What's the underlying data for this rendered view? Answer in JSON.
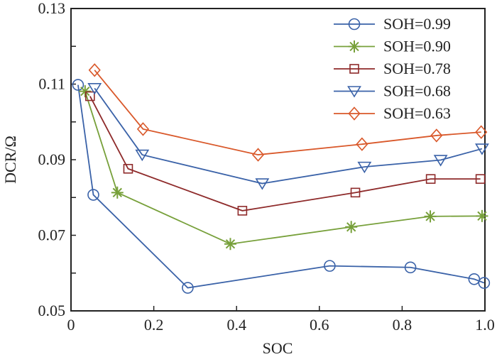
{
  "chart_data": {
    "type": "line",
    "title": "",
    "xlabel": "SOC",
    "ylabel": "DCR/Ω",
    "xlim": [
      0,
      1.0
    ],
    "ylim": [
      0.05,
      0.13
    ],
    "xticks": [
      "0",
      "0.2",
      "0.4",
      "0.6",
      "0.8",
      "1.0"
    ],
    "yticks": [
      "0.05",
      "0.07",
      "0.09",
      "0.11",
      "0.13"
    ],
    "grid": false,
    "legend_position": "top-right",
    "series": [
      {
        "name": "SOH=0.99",
        "color": "#3a62a8",
        "marker": "circle",
        "x": [
          0.017,
          0.054,
          0.282,
          0.625,
          0.82,
          0.974,
          0.998
        ],
        "y": [
          0.1098,
          0.0807,
          0.0561,
          0.0619,
          0.0615,
          0.0584,
          0.0574
        ]
      },
      {
        "name": "SOH=0.90",
        "color": "#77a03a",
        "marker": "star",
        "x": [
          0.034,
          0.112,
          0.385,
          0.677,
          0.868,
          0.993
        ],
        "y": [
          0.1081,
          0.0813,
          0.0677,
          0.0722,
          0.075,
          0.0751
        ]
      },
      {
        "name": "SOH=0.78",
        "color": "#8e2a2a",
        "marker": "square",
        "x": [
          0.046,
          0.138,
          0.414,
          0.687,
          0.869,
          0.989
        ],
        "y": [
          0.1068,
          0.0876,
          0.0765,
          0.0813,
          0.0849,
          0.0849
        ]
      },
      {
        "name": "SOH=0.68",
        "color": "#3a62a8",
        "marker": "triangle-down",
        "x": [
          0.057,
          0.172,
          0.462,
          0.709,
          0.893,
          0.993
        ],
        "y": [
          0.1089,
          0.0913,
          0.0837,
          0.0881,
          0.0899,
          0.0929
        ]
      },
      {
        "name": "SOH=0.63",
        "color": "#d9582a",
        "marker": "diamond",
        "x": [
          0.057,
          0.174,
          0.452,
          0.703,
          0.883,
          0.991
        ],
        "y": [
          0.1137,
          0.0981,
          0.0913,
          0.0941,
          0.0964,
          0.0973
        ]
      }
    ]
  }
}
